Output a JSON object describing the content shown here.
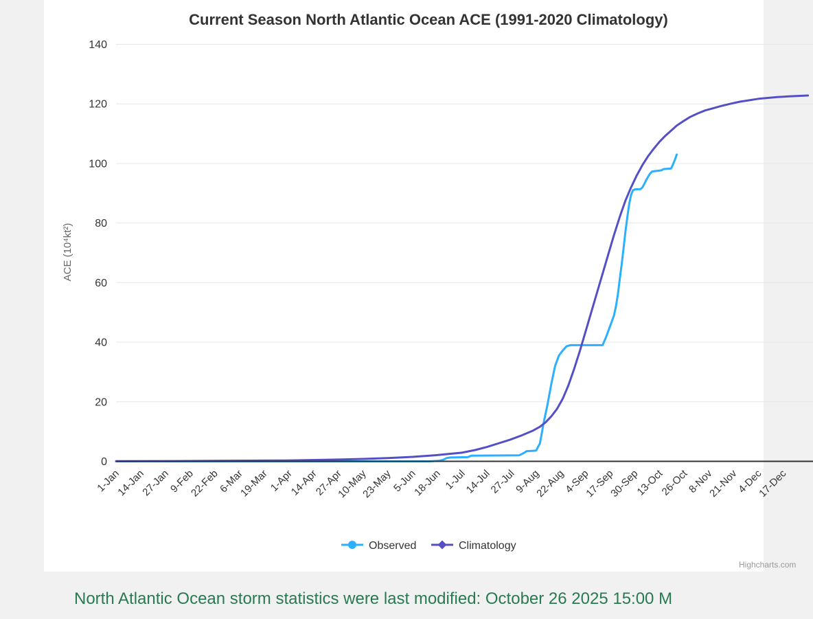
{
  "page": {
    "background_color": "#f1f1f1",
    "card_background": "#ffffff",
    "footer": {
      "text": "North Atlantic Ocean storm statistics were last modified: October 26 2025 15:00 M",
      "color": "#287a50"
    }
  },
  "chart_data": {
    "type": "line",
    "title": "Current Season North Atlantic Ocean ACE (1991-2020 Climatology)",
    "xlabel": "",
    "ylabel": "ACE (10⁴kt²)",
    "ylim": [
      0,
      140
    ],
    "y_ticks": [
      0,
      20,
      40,
      60,
      80,
      100,
      120,
      140
    ],
    "x_tick_labels": [
      "1-Jan",
      "14-Jan",
      "27-Jan",
      "9-Feb",
      "22-Feb",
      "6-Mar",
      "19-Mar",
      "1-Apr",
      "14-Apr",
      "27-Apr",
      "10-May",
      "23-May",
      "5-Jun",
      "18-Jun",
      "1-Jul",
      "14-Jul",
      "27-Jul",
      "9-Aug",
      "22-Aug",
      "4-Sep",
      "17-Sep",
      "30-Sep",
      "13-Oct",
      "26-Oct",
      "8-Nov",
      "21-Nov",
      "4-Dec",
      "17-Dec"
    ],
    "x_tick_interval_days": 13,
    "grid": "horizontal",
    "legend_position": "bottom-center",
    "credits": "Highcharts.com",
    "colors": {
      "observed": "#2caffe",
      "climatology": "#544fc5",
      "axis_line": "#333333",
      "grid_line": "#e6e6e6",
      "label_text": "#333333",
      "axis_title_text": "#666666",
      "credits_text": "#999999"
    },
    "series": [
      {
        "name": "Observed",
        "color": "#2caffe",
        "marker": "circle",
        "points_day_value": [
          [
            0,
            0
          ],
          [
            30,
            0
          ],
          [
            60,
            0
          ],
          [
            90,
            0
          ],
          [
            120,
            0
          ],
          [
            150,
            0
          ],
          [
            165,
            0
          ],
          [
            170,
            0.2
          ],
          [
            172,
            0.5
          ],
          [
            174,
            1.1
          ],
          [
            176,
            1.3
          ],
          [
            185,
            1.4
          ],
          [
            187,
            1.9
          ],
          [
            212,
            2.0
          ],
          [
            214,
            2.6
          ],
          [
            216,
            3.4
          ],
          [
            221,
            3.6
          ],
          [
            223,
            6
          ],
          [
            225,
            13
          ],
          [
            227,
            19
          ],
          [
            229,
            26
          ],
          [
            231,
            32
          ],
          [
            233,
            35.5
          ],
          [
            235,
            37.2
          ],
          [
            237,
            38.6
          ],
          [
            239,
            39
          ],
          [
            256,
            39
          ],
          [
            258,
            42
          ],
          [
            260,
            45.5
          ],
          [
            262,
            49
          ],
          [
            263,
            52
          ],
          [
            264,
            56
          ],
          [
            265,
            61
          ],
          [
            266,
            66
          ],
          [
            267,
            71.5
          ],
          [
            268,
            77
          ],
          [
            269,
            82
          ],
          [
            270,
            86.5
          ],
          [
            271,
            89.5
          ],
          [
            272,
            91
          ],
          [
            273,
            91.3
          ],
          [
            276,
            91.4
          ],
          [
            277,
            92
          ],
          [
            278,
            93.2
          ],
          [
            279,
            94.5
          ],
          [
            280,
            95.6
          ],
          [
            281,
            96.6
          ],
          [
            282,
            97.3
          ],
          [
            287,
            97.7
          ],
          [
            288,
            98.1
          ],
          [
            292,
            98.3
          ],
          [
            293,
            99.6
          ],
          [
            294,
            101.2
          ],
          [
            295,
            103
          ]
        ]
      },
      {
        "name": "Climatology",
        "color": "#544fc5",
        "marker": "diamond",
        "points_day_value": [
          [
            0,
            0.05
          ],
          [
            30,
            0.1
          ],
          [
            60,
            0.2
          ],
          [
            90,
            0.3
          ],
          [
            105,
            0.45
          ],
          [
            117,
            0.6
          ],
          [
            130,
            0.8
          ],
          [
            143,
            1.1
          ],
          [
            156,
            1.5
          ],
          [
            169,
            2.1
          ],
          [
            182,
            2.9
          ],
          [
            189,
            3.8
          ],
          [
            195,
            4.8
          ],
          [
            201,
            6
          ],
          [
            207,
            7.2
          ],
          [
            213,
            8.6
          ],
          [
            219,
            10.2
          ],
          [
            223,
            11.6
          ],
          [
            226,
            13.1
          ],
          [
            229,
            15.1
          ],
          [
            232,
            17.6
          ],
          [
            235,
            21
          ],
          [
            238,
            25.5
          ],
          [
            241,
            31
          ],
          [
            244,
            37
          ],
          [
            247,
            43.5
          ],
          [
            250,
            50
          ],
          [
            253,
            56.5
          ],
          [
            256,
            63
          ],
          [
            259,
            69.5
          ],
          [
            262,
            76
          ],
          [
            265,
            82
          ],
          [
            268,
            87.5
          ],
          [
            271,
            92
          ],
          [
            274,
            96
          ],
          [
            277,
            99.5
          ],
          [
            280,
            102.5
          ],
          [
            283,
            105
          ],
          [
            286,
            107.3
          ],
          [
            289,
            109.3
          ],
          [
            292,
            111
          ],
          [
            295,
            112.7
          ],
          [
            298,
            114
          ],
          [
            302,
            115.6
          ],
          [
            306,
            116.8
          ],
          [
            310,
            117.8
          ],
          [
            314,
            118.5
          ],
          [
            318,
            119.2
          ],
          [
            323,
            120
          ],
          [
            328,
            120.7
          ],
          [
            333,
            121.2
          ],
          [
            338,
            121.7
          ],
          [
            343,
            122
          ],
          [
            348,
            122.3
          ],
          [
            354,
            122.5
          ],
          [
            364,
            122.8
          ]
        ]
      }
    ]
  }
}
